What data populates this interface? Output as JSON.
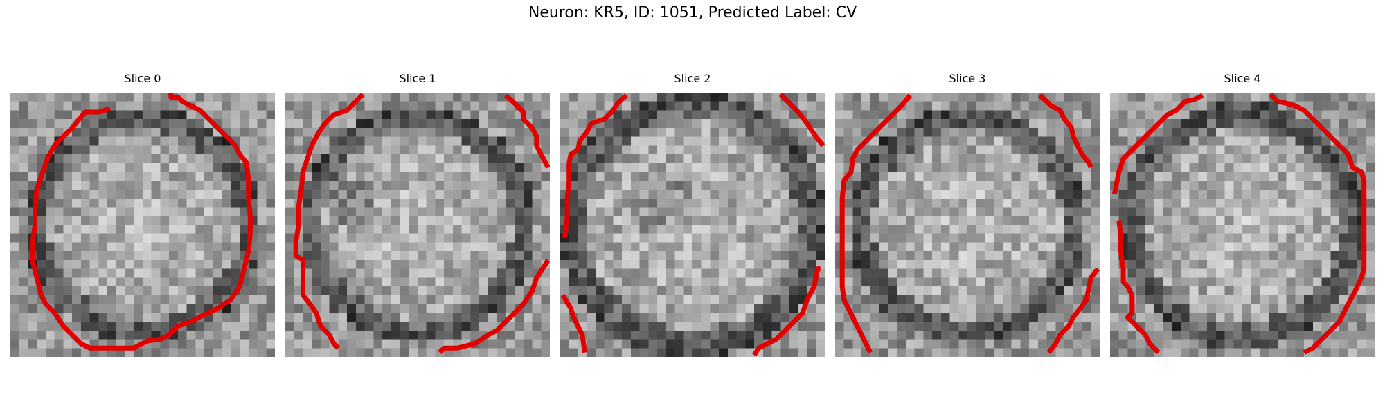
{
  "figure": {
    "title": "Neuron: KR5, ID: 1051, Predicted Label: CV"
  },
  "colors": {
    "contour": "#e00000"
  },
  "panels": [
    {
      "title": "Slice 0"
    },
    {
      "title": "Slice 1"
    },
    {
      "title": "Slice 2"
    },
    {
      "title": "Slice 3"
    },
    {
      "title": "Slice 4"
    }
  ]
}
